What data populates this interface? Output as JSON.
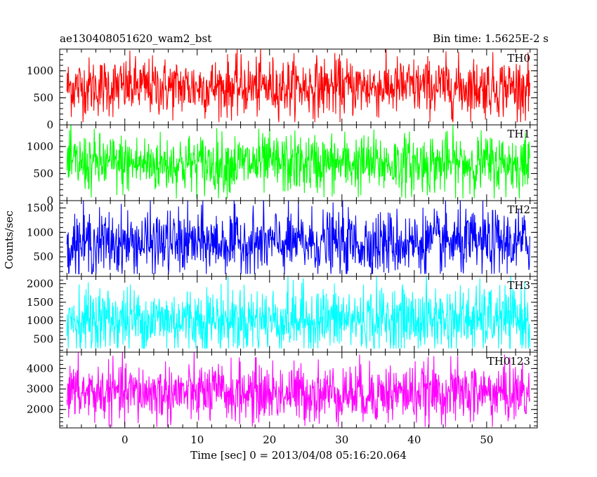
{
  "header": {
    "title": "ae130408051620_wam2_bst",
    "bin_time": "Bin time: 1.5625E-2 s"
  },
  "chart_data": {
    "type": "line",
    "title": "ae130408051620_wam2_bst",
    "xlabel": "Time [sec] 0 = 2013/04/08 05:16:20.064",
    "ylabel": "Counts/sec",
    "xlim": [
      -9,
      57
    ],
    "x_ticks": [
      0,
      10,
      20,
      30,
      40,
      50
    ],
    "x_tick_labels": [
      "0",
      "10",
      "20",
      "30",
      "40",
      "50"
    ],
    "x_data_range": [
      -8,
      56
    ],
    "bin_time": 0.015625,
    "panels": [
      {
        "name": "TH0",
        "color": "#ff0000",
        "ylim": [
          0,
          1400
        ],
        "ticks": [
          0,
          500,
          1000
        ],
        "tick_labels": [
          "0",
          "500",
          "1000"
        ],
        "mean": 700,
        "min": 50,
        "max": 1400
      },
      {
        "name": "TH1",
        "color": "#00ff00",
        "ylim": [
          0,
          1400
        ],
        "ticks": [
          0,
          500,
          1000
        ],
        "tick_labels": [
          "0",
          "500",
          "1000"
        ],
        "mean": 680,
        "min": 40,
        "max": 1400
      },
      {
        "name": "TH2",
        "color": "#0000ff",
        "ylim": [
          100,
          1650
        ],
        "ticks": [
          500,
          1000,
          1500
        ],
        "tick_labels": [
          "500",
          "1000",
          "1500"
        ],
        "mean": 780,
        "min": 150,
        "max": 1650
      },
      {
        "name": "TH3",
        "color": "#00ffff",
        "ylim": [
          150,
          2200
        ],
        "ticks": [
          500,
          1000,
          1500,
          2000
        ],
        "tick_labels": [
          "500",
          "1000",
          "1500",
          "2000"
        ],
        "mean": 1030,
        "min": 250,
        "max": 2200
      },
      {
        "name": "TH0123",
        "color": "#ff00ff",
        "ylim": [
          1100,
          4800
        ],
        "ticks": [
          2000,
          3000,
          4000
        ],
        "tick_labels": [
          "2000",
          "3000",
          "4000"
        ],
        "mean": 2800,
        "min": 1150,
        "max": 4700
      }
    ]
  }
}
